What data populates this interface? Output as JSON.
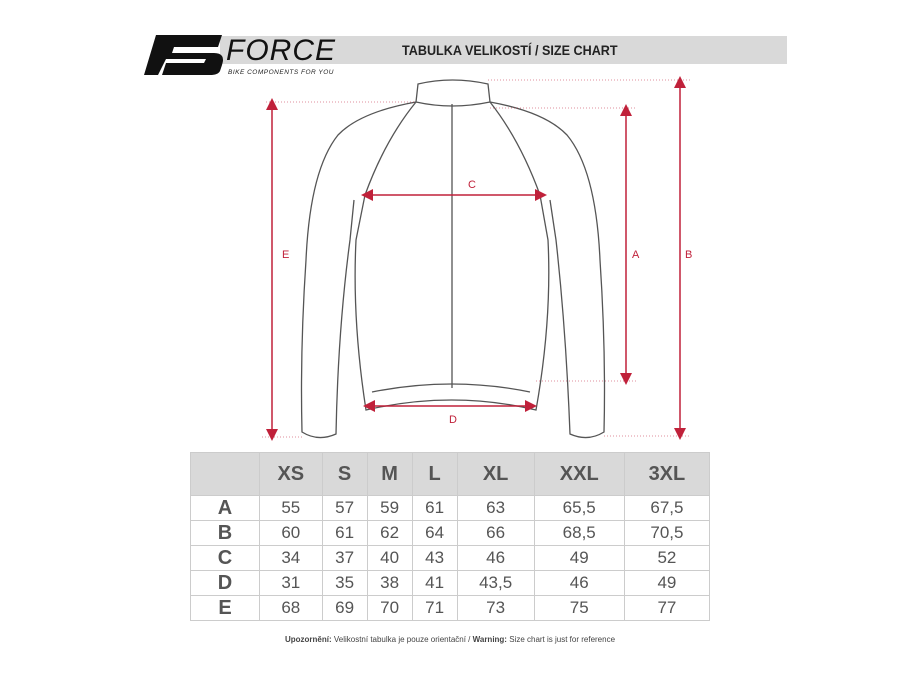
{
  "header": {
    "brand": "FORCE",
    "tagline": "BIKE COMPONENTS FOR YOU",
    "title": "TABULKA VELIKOSTÍ / SIZE CHART"
  },
  "diagram": {
    "labels": {
      "a": "A",
      "b": "B",
      "c": "C",
      "d": "D",
      "e": "E"
    },
    "accent": "#c0213a"
  },
  "table": {
    "columns": [
      "XS",
      "S",
      "M",
      "L",
      "XL",
      "XXL",
      "3XL"
    ],
    "rows": [
      {
        "label": "A",
        "values": [
          "55",
          "57",
          "59",
          "61",
          "63",
          "65,5",
          "67,5"
        ]
      },
      {
        "label": "B",
        "values": [
          "60",
          "61",
          "62",
          "64",
          "66",
          "68,5",
          "70,5"
        ]
      },
      {
        "label": "C",
        "values": [
          "34",
          "37",
          "40",
          "43",
          "46",
          "49",
          "52"
        ]
      },
      {
        "label": "D",
        "values": [
          "31",
          "35",
          "38",
          "41",
          "43,5",
          "46",
          "49"
        ]
      },
      {
        "label": "E",
        "values": [
          "68",
          "69",
          "70",
          "71",
          "73",
          "75",
          "77"
        ]
      }
    ]
  },
  "note": {
    "cz_bold": "Upozornění:",
    "cz": " Velikostní tabulka je pouze orientační / ",
    "en_bold": "Warning:",
    "en": " Size chart is just for reference"
  }
}
